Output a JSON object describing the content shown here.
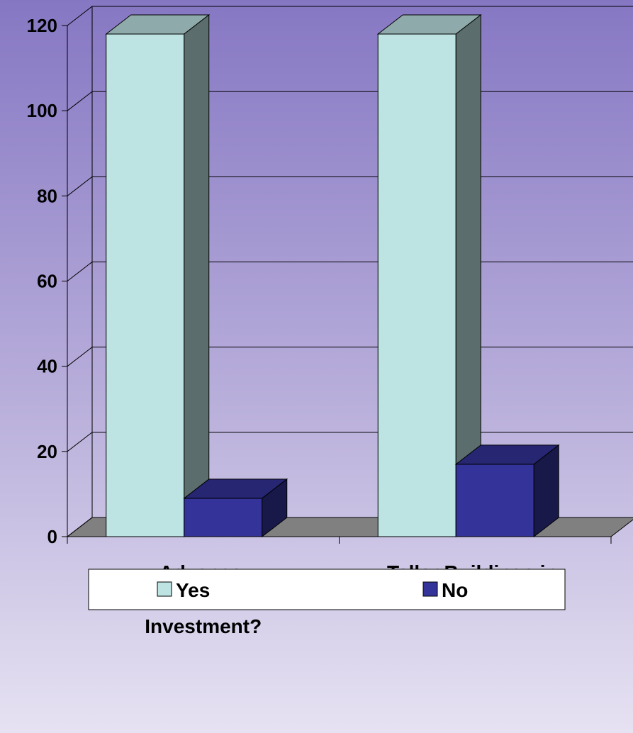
{
  "chart_data": {
    "type": "bar3d",
    "categories": [
      "Advance Infrastructure Investment?",
      "Taller Buildings in Richards?"
    ],
    "series": [
      {
        "name": "Yes",
        "color": "#bde3e3",
        "values": [
          118,
          118
        ]
      },
      {
        "name": "No",
        "color": "#333399",
        "values": [
          9,
          17
        ]
      }
    ],
    "ylim": [
      0,
      120
    ],
    "yticks": [
      0,
      20,
      40,
      60,
      80,
      100,
      120
    ],
    "grid": true,
    "legend": "bottom"
  }
}
